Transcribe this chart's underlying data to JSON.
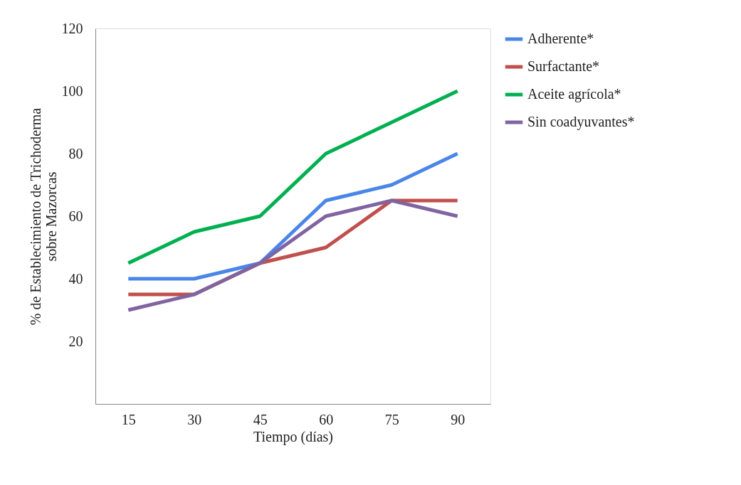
{
  "chart_data": {
    "type": "line",
    "xlabel": "Tiempo (días)",
    "ylabel": "% de Establecimiento de Trichoderma sobre Mazorcas",
    "categories": [
      "15",
      "30",
      "45",
      "60",
      "75",
      "90"
    ],
    "series": [
      {
        "name": "Adherente*",
        "color": "#4a86e8",
        "values": [
          40,
          40,
          45,
          65,
          70,
          80
        ]
      },
      {
        "name": "Surfactante*",
        "color": "#c0504d",
        "values": [
          35,
          35,
          45,
          50,
          65,
          65
        ]
      },
      {
        "name": "Aceite agrícola*",
        "color": "#00b050",
        "values": [
          45,
          55,
          60,
          80,
          90,
          100
        ]
      },
      {
        "name": "Sin coadyuvantes*",
        "color": "#8064a2",
        "values": [
          30,
          35,
          45,
          60,
          65,
          60
        ]
      }
    ],
    "ylim": [
      0,
      120
    ],
    "yticks": [
      20,
      40,
      60,
      80,
      100,
      120
    ],
    "legend": "right"
  }
}
